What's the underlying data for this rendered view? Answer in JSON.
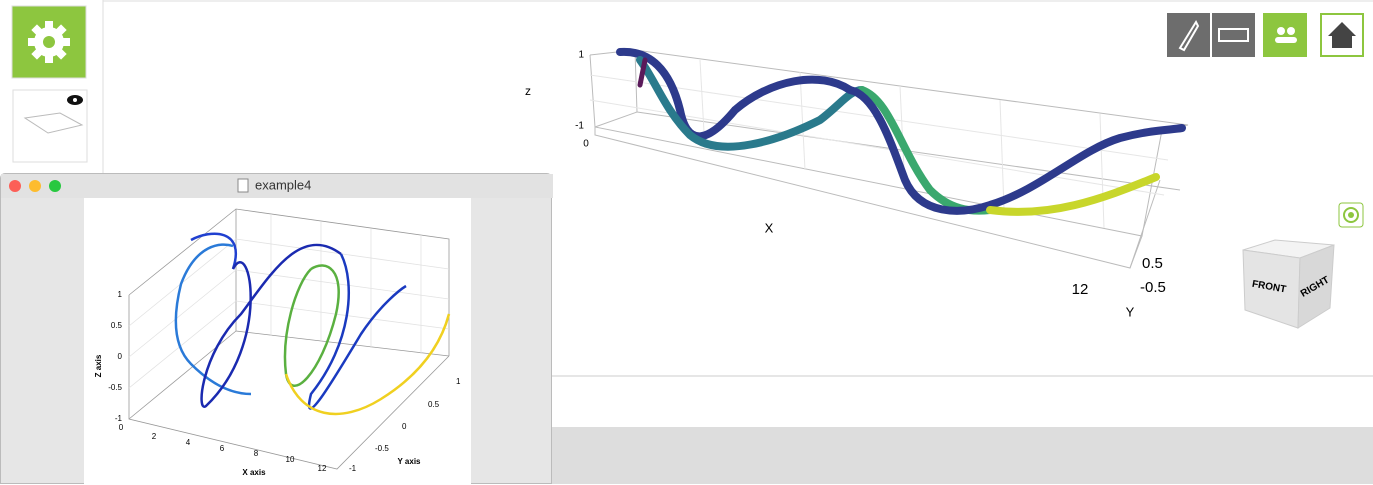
{
  "viewer": {
    "z_axis_label": "z",
    "z_ticks": [
      "1",
      "-1"
    ],
    "x_origin_tick": "0",
    "x_axis_label": "X",
    "x_end_tick": "12",
    "y_ticks": [
      "0.5",
      "-0.5"
    ],
    "y_axis_label": "Y",
    "view_cube": {
      "front": "FRONT",
      "right": "RIGHT"
    }
  },
  "figure_window": {
    "title": "example4",
    "plot": {
      "z_label": "Z axis",
      "x_label": "X axis",
      "y_label": "Y axis",
      "z_ticks": [
        "1",
        "0.5",
        "0",
        "-0.5",
        "-1"
      ],
      "x_ticks": [
        "0",
        "2",
        "4",
        "6",
        "8",
        "10",
        "12"
      ],
      "y_ticks": [
        "-1",
        "-0.5",
        "0",
        "0.5",
        "1"
      ]
    }
  }
}
